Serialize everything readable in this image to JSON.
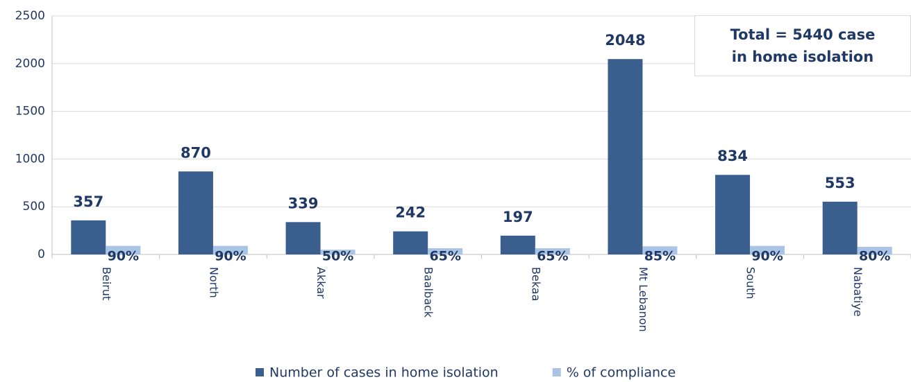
{
  "chart_data": {
    "type": "bar",
    "categories": [
      "Beirut",
      "North",
      "Akkar",
      "Baalback",
      "Bekaa",
      "Mt Lebanon",
      "South",
      "Nabatiye"
    ],
    "series": [
      {
        "name": "Number of cases in home isolation",
        "color": "#3a5f8f",
        "values": [
          357,
          870,
          339,
          242,
          197,
          2048,
          834,
          553
        ]
      },
      {
        "name": "% of compliance",
        "color": "#a9c4e4",
        "values": [
          90,
          90,
          50,
          65,
          65,
          85,
          90,
          80
        ],
        "value_labels": [
          "90%",
          "90%",
          "50%",
          "65%",
          "65%",
          "85%",
          "90%",
          "80%"
        ]
      }
    ],
    "annotation": "Total = 5440 case in home isolation",
    "ylim": [
      0,
      2500
    ],
    "yticks": [
      0,
      500,
      1000,
      1500,
      2000,
      2500
    ],
    "grid": true,
    "legend": "bottom"
  }
}
